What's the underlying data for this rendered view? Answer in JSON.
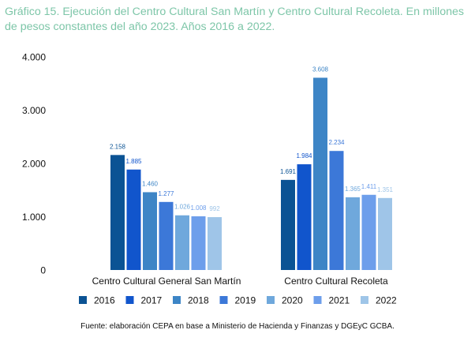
{
  "title": "Gráfico 15. Ejecución del Centro Cultural San Martín y Centro Cultural Recoleta. En millones de pesos constantes del año 2023. Años 2016 a 2022.",
  "source": "Fuente: elaboración CEPA en base a Ministerio de Hacienda y Finanzas y DGEyC GCBA.",
  "chart_data": {
    "type": "bar",
    "categories": [
      "Centro Cultural General San Martín",
      "Centro Cultural Recoleta"
    ],
    "series": [
      {
        "name": "2016",
        "color": "#0b5394",
        "values": [
          2158,
          1691
        ],
        "labels": [
          "2.158",
          "1.691"
        ]
      },
      {
        "name": "2017",
        "color": "#1155cc",
        "values": [
          1885,
          1984
        ],
        "labels": [
          "1.885",
          "1.984"
        ]
      },
      {
        "name": "2018",
        "color": "#3d85c6",
        "values": [
          1460,
          3608
        ],
        "labels": [
          "1.460",
          "3.608"
        ]
      },
      {
        "name": "2019",
        "color": "#3c78d8",
        "values": [
          1277,
          2234
        ],
        "labels": [
          "1.277",
          "2.234"
        ]
      },
      {
        "name": "2020",
        "color": "#6fa8dc",
        "values": [
          1026,
          1365
        ],
        "labels": [
          "1.026",
          "1.365"
        ]
      },
      {
        "name": "2021",
        "color": "#6d9eeb",
        "values": [
          1008,
          1411
        ],
        "labels": [
          "1.008",
          "1.411"
        ]
      },
      {
        "name": "2022",
        "color": "#9fc5e8",
        "values": [
          992,
          1351
        ],
        "labels": [
          "992",
          "1.351"
        ]
      }
    ],
    "ylim": [
      0,
      4000
    ],
    "yticks": [
      0,
      1000,
      2000,
      3000,
      4000
    ],
    "ytick_labels": [
      "0",
      "1.000",
      "2.000",
      "3.000",
      "4.000"
    ],
    "xlabel": "",
    "ylabel": "",
    "legend": "bottom"
  }
}
